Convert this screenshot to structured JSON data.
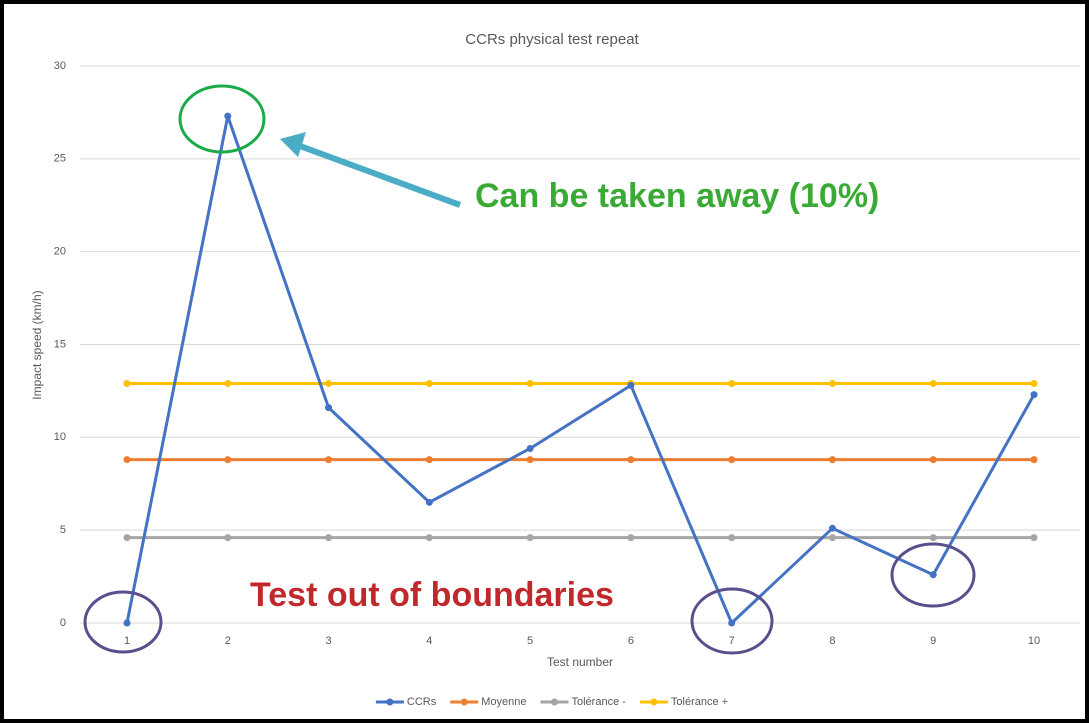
{
  "chart_data": {
    "type": "line",
    "title": "CCRs physical test repeat",
    "x_label": "Test number",
    "y_label": "Impact speed (km/h)",
    "categories": [
      1,
      2,
      3,
      4,
      5,
      6,
      7,
      8,
      9,
      10
    ],
    "series": [
      {
        "name": "CCRs",
        "color": "#4472c4",
        "values": [
          0,
          27.3,
          11.6,
          6.5,
          9.4,
          12.8,
          0,
          5.1,
          2.6,
          12.3
        ]
      },
      {
        "name": "Moyenne",
        "color": "#ed7d31",
        "values": [
          8.8,
          8.8,
          8.8,
          8.8,
          8.8,
          8.8,
          8.8,
          8.8,
          8.8,
          8.8
        ]
      },
      {
        "name": "Tolérance -",
        "color": "#a5a5a5",
        "values": [
          4.6,
          4.6,
          4.6,
          4.6,
          4.6,
          4.6,
          4.6,
          4.6,
          4.6,
          4.6
        ]
      },
      {
        "name": "Tolérance +",
        "color": "#ffc000",
        "values": [
          12.9,
          12.9,
          12.9,
          12.9,
          12.9,
          12.9,
          12.9,
          12.9,
          12.9,
          12.9
        ]
      }
    ],
    "ylim": [
      0,
      30
    ],
    "yticks": [
      0,
      5,
      10,
      15,
      20,
      25,
      30
    ],
    "grid": true,
    "legend": "bottom",
    "annotations": [
      "Can be taken away (10%)",
      "Test out of boundaries"
    ]
  }
}
